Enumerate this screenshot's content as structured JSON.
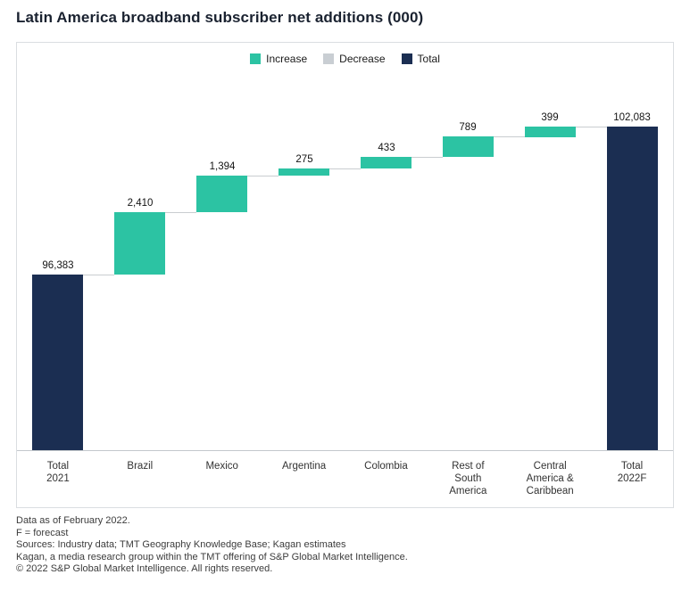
{
  "title": "Latin America broadband subscriber net additions (000)",
  "chart_data": {
    "type": "waterfall",
    "title": "Latin America broadband subscriber net additions (000)",
    "categories": [
      "Total 2021",
      "Brazil",
      "Mexico",
      "Argentina",
      "Colombia",
      "Rest of South America",
      "Central America & Caribbean",
      "Total 2022F"
    ],
    "values": [
      96383,
      2410,
      1394,
      275,
      433,
      789,
      399,
      102083
    ],
    "bars": [
      {
        "category": "Total 2021",
        "category_lines": [
          "Total",
          "2021"
        ],
        "value": 96383,
        "label": "96,383",
        "kind": "total"
      },
      {
        "category": "Brazil",
        "category_lines": [
          "Brazil"
        ],
        "value": 2410,
        "label": "2,410",
        "kind": "increase"
      },
      {
        "category": "Mexico",
        "category_lines": [
          "Mexico"
        ],
        "value": 1394,
        "label": "1,394",
        "kind": "increase"
      },
      {
        "category": "Argentina",
        "category_lines": [
          "Argentina"
        ],
        "value": 275,
        "label": "275",
        "kind": "increase"
      },
      {
        "category": "Colombia",
        "category_lines": [
          "Colombia"
        ],
        "value": 433,
        "label": "433",
        "kind": "increase"
      },
      {
        "category": "Rest of South America",
        "category_lines": [
          "Rest of",
          "South",
          "America"
        ],
        "value": 789,
        "label": "789",
        "kind": "increase"
      },
      {
        "category": "Central America & Caribbean",
        "category_lines": [
          "Central",
          "America &",
          "Caribbean"
        ],
        "value": 399,
        "label": "399",
        "kind": "increase"
      },
      {
        "category": "Total 2022F",
        "category_lines": [
          "Total",
          "2022F"
        ],
        "value": 102083,
        "label": "102,083",
        "kind": "total"
      }
    ],
    "legend": [
      {
        "label": "Increase",
        "kind": "increase",
        "color": "#2cc3a3"
      },
      {
        "label": "Decrease",
        "kind": "decrease",
        "color": "#c9ced3"
      },
      {
        "label": "Total",
        "kind": "total",
        "color": "#1b2e52"
      }
    ],
    "legend_position": "top-center",
    "grid": false,
    "ylim": [
      89600,
      104000
    ]
  },
  "footnotes": [
    "Data as of February 2022.",
    "F = forecast",
    "Sources: Industry data; TMT Geography Knowledge Base; Kagan estimates",
    "Kagan, a media research group within the TMT offering of S&P Global Market Intelligence.",
    "© 2022 S&P Global Market Intelligence. All rights reserved."
  ]
}
